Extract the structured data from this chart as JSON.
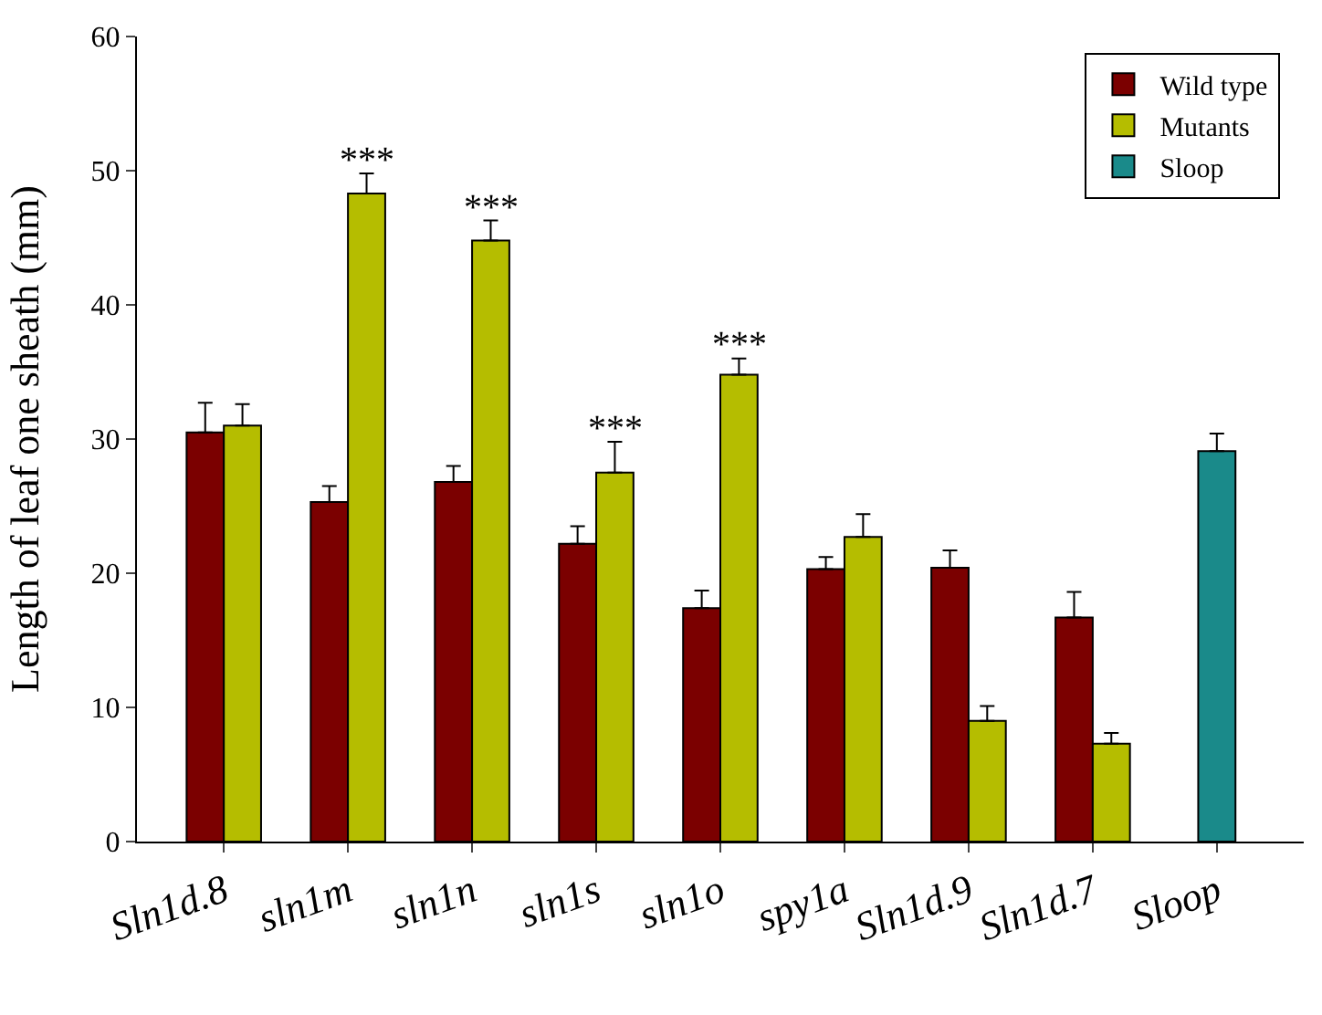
{
  "chart_data": {
    "type": "bar",
    "ylabel": "Length of leaf one sheath (mm)",
    "categories": [
      "Sln1d.8",
      "sln1m",
      "sln1n",
      "sln1s",
      "sln1o",
      "spy1a",
      "Sln1d.9",
      "Sln1d.7",
      "Sloop"
    ],
    "series": [
      {
        "name": "Wild type",
        "color": "#7b0000",
        "values": [
          30.5,
          25.3,
          26.8,
          22.2,
          17.4,
          20.3,
          20.4,
          16.7,
          null
        ],
        "errors": [
          [
            30.5,
            32.7
          ],
          [
            25.3,
            26.5
          ],
          [
            26.8,
            28.0
          ],
          [
            22.2,
            23.5
          ],
          [
            17.4,
            18.7
          ],
          [
            20.3,
            21.2
          ],
          [
            20.4,
            21.7
          ],
          [
            16.7,
            18.6
          ],
          null
        ]
      },
      {
        "name": "Mutants",
        "color": "#b5bd00",
        "values": [
          31.0,
          48.3,
          44.8,
          27.5,
          34.8,
          22.7,
          9.0,
          7.3,
          null
        ],
        "errors": [
          [
            31.0,
            32.6
          ],
          [
            48.3,
            49.8
          ],
          [
            44.8,
            46.3
          ],
          [
            27.5,
            29.8
          ],
          [
            34.8,
            36.0
          ],
          [
            22.7,
            24.4
          ],
          [
            9.0,
            10.1
          ],
          [
            7.3,
            8.1
          ],
          null
        ]
      },
      {
        "name": "Sloop",
        "color": "#1a8a8a",
        "values": [
          null,
          null,
          null,
          null,
          null,
          null,
          null,
          null,
          29.1
        ],
        "errors": [
          null,
          null,
          null,
          null,
          null,
          null,
          null,
          null,
          [
            29.1,
            30.4
          ]
        ]
      }
    ],
    "ylim": [
      0,
      60
    ],
    "yticks": [
      0,
      10,
      20,
      30,
      40,
      50,
      60
    ],
    "grid": false,
    "legend": "top right",
    "annotations": [
      {
        "text": "***",
        "x": "sln1m",
        "y": 48.3
      },
      {
        "text": "***",
        "x": "sln1n",
        "y": 44.8
      },
      {
        "text": "***",
        "x": "sln1s",
        "y": 27.5
      },
      {
        "text": "***",
        "x": "sln1o",
        "y": 34.8
      }
    ]
  }
}
